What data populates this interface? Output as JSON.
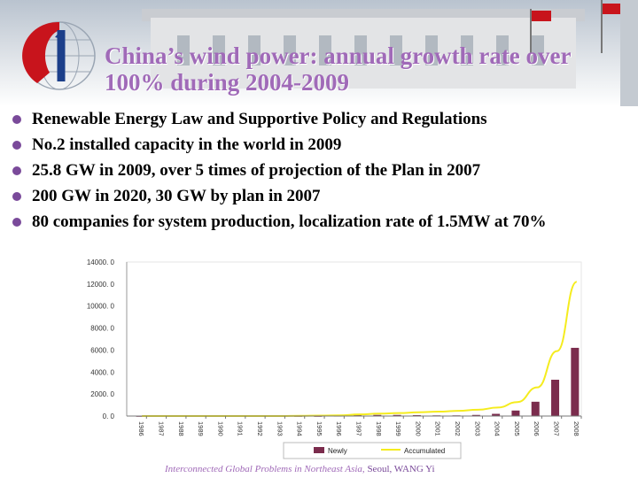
{
  "slide": {
    "title": "China’s wind power: annual growth rate over 100% during 2004-2009",
    "bullets": [
      "Renewable Energy Law and Supportive Policy and Regulations",
      "No.2  installed capacity in the world in 2009",
      "25.8 GW in 2009, over 5 times of projection of the Plan in 2007",
      "200 GW in 2020, 30 GW by plan in 2007",
      "80 companies for system production, localization rate of 1.5MW at 70%"
    ],
    "footer_italic": "Interconnected Global Problems in Northeast Asia,",
    "footer_plain": " Seoul,  WANG Yi"
  },
  "colors": {
    "title": "#a06ab8",
    "bullet": "#7a4a9a",
    "bar": "#7b2c4d",
    "line": "#f5ec1e"
  },
  "icons": {
    "logo": "globe-logo-icon",
    "bullet": "round-bullet-icon"
  },
  "chart_data": {
    "type": "bar",
    "categories": [
      "1986",
      "1987",
      "1988",
      "1989",
      "1990",
      "1991",
      "1992",
      "1993",
      "1994",
      "1995",
      "1996",
      "1997",
      "1998",
      "1999",
      "2000",
      "2001",
      "2002",
      "2003",
      "2004",
      "2005",
      "2006",
      "2007",
      "2008"
    ],
    "y_ticks": [
      "14000. 0",
      "12000. 0",
      "10000. 0",
      "8000. 0",
      "6000. 0",
      "4000. 0",
      "2000. 0",
      "0. 0"
    ],
    "ylim": [
      0,
      14000
    ],
    "series": [
      {
        "name": "Newly",
        "kind": "bar",
        "values": [
          0,
          0,
          0,
          0,
          0,
          0,
          0,
          0,
          0,
          0,
          20,
          80,
          100,
          100,
          80,
          60,
          60,
          100,
          200,
          500,
          1300,
          3300,
          6200
        ]
      },
      {
        "name": "Accumulated",
        "kind": "line",
        "values": [
          0,
          0,
          0,
          0,
          0,
          0,
          0,
          0,
          20,
          40,
          60,
          150,
          220,
          270,
          340,
          400,
          470,
          570,
          770,
          1270,
          2600,
          5900,
          12200
        ]
      }
    ],
    "legend": "bottom",
    "grid": false
  }
}
